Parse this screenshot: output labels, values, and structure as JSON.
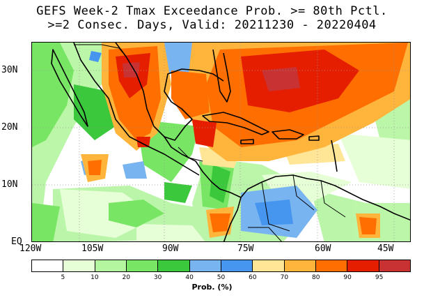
{
  "title_line1": "GEFS Week-2 Tmax Exceedance Prob. >= 80th Pctl.",
  "title_line2": ">=2 Consec. Days, Valid: 20211230 - 20220404",
  "lat_labels": [
    "30N",
    "20N",
    "10N",
    "EQ"
  ],
  "lon_labels": [
    "120W",
    "105W",
    "90W",
    "75W",
    "60W",
    "45W"
  ],
  "colorbar": {
    "title": "Prob. (%)",
    "ticks": [
      "5",
      "10",
      "20",
      "30",
      "40",
      "50",
      "60",
      "70",
      "80",
      "90",
      "95"
    ],
    "colors": [
      "#ffffff",
      "#e6ffd7",
      "#b4f5a0",
      "#78e664",
      "#3cc83c",
      "#78b4f0",
      "#4696f0",
      "#ffe696",
      "#ffb43c",
      "#ff6e00",
      "#e61e00",
      "#c83232"
    ]
  },
  "colors": {
    "water_bg": "#ffffff",
    "grid": "#999999",
    "coastline": "#000000"
  }
}
